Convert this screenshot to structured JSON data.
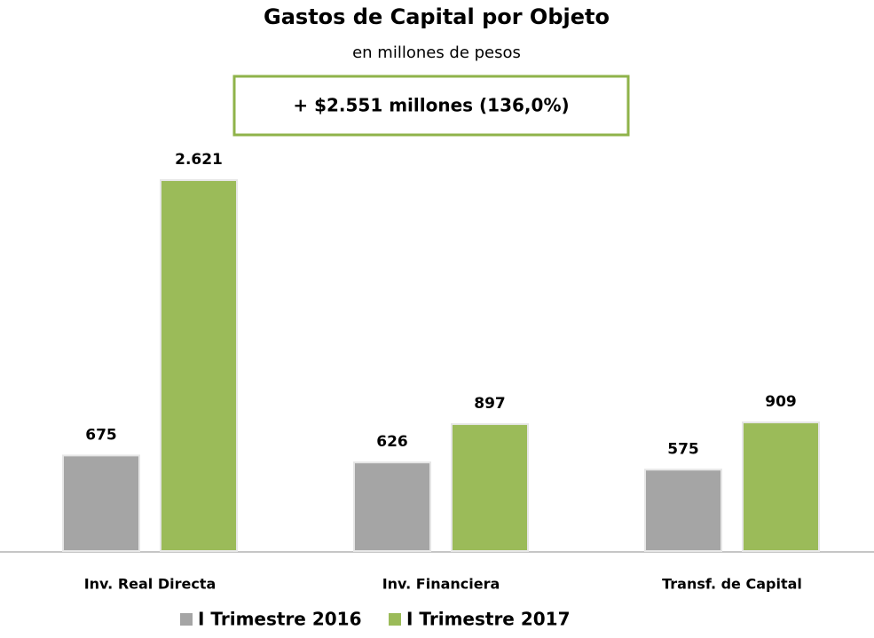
{
  "chart_data": {
    "type": "bar",
    "title": "Gastos de Capital por Objeto",
    "subtitle": "en millones de pesos",
    "annotation": "+ $2.551 millones (136,0%)",
    "categories": [
      "Inv. Real Directa",
      "Inv. Financiera",
      "Transf. de Capital"
    ],
    "series": [
      {
        "name": "I Trimestre 2016",
        "color": "#a5a5a5",
        "values": [
          675,
          626,
          575
        ],
        "value_labels": [
          "675",
          "626",
          "575"
        ]
      },
      {
        "name": "I Trimestre 2017",
        "color": "#9bbb59",
        "values": [
          2621,
          897,
          909
        ],
        "value_labels": [
          "2.621",
          "897",
          "909"
        ]
      }
    ]
  }
}
